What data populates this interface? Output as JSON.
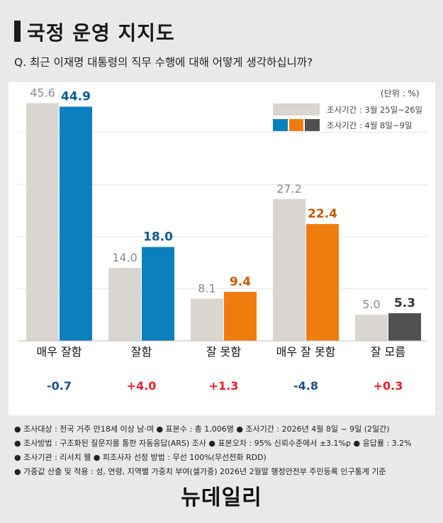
{
  "title": "국정 운영 지지도",
  "question": "Q. 최근 이재명 대통령의 직무 수행에 대해 어떻게 생각하십니까?",
  "unit": "(단위 : %)",
  "legend": {
    "prev": "조사기간 : 3월 25일~26일",
    "curr": "조사기간 : 4월 8일~9일"
  },
  "colors": {
    "prev": "#d9d6d2",
    "blue": "#0a80bf",
    "orange": "#ef7d0d",
    "gray": "#505050",
    "diff_up": "#e4202b",
    "diff_down": "#1f4e8c"
  },
  "chart_data": {
    "type": "bar",
    "categories": [
      "매우 잘함",
      "잘함",
      "잘 못함",
      "매우 잘 못함",
      "잘 모름"
    ],
    "series": [
      {
        "name": "조사기간 : 3월 25일~26일",
        "values": [
          45.6,
          14.0,
          8.1,
          27.2,
          5.0
        ]
      },
      {
        "name": "조사기간 : 4월 8일~9일",
        "values": [
          44.9,
          18.0,
          9.4,
          22.4,
          5.3
        ]
      }
    ],
    "value_labels_prev": [
      "45.6",
      "14.0",
      "8.1",
      "27.2",
      "5.0"
    ],
    "value_labels_curr": [
      "44.9",
      "18.0",
      "9.4",
      "22.4",
      "5.3"
    ],
    "curr_colors": [
      "#0a80bf",
      "#0a80bf",
      "#ef7d0d",
      "#ef7d0d",
      "#505050"
    ],
    "diffs": [
      "-0.7",
      "+4.0",
      "+1.3",
      "-4.8",
      "+0.3"
    ],
    "ylim": [
      0,
      50
    ],
    "grid": true
  },
  "notes": [
    "● 조사대상 : 전국 거주 만18세 이상 남·여  ● 표본수 : 총 1,006명  ● 조사기간 : 2026년 4월 8일 ~ 9일 (2일간)",
    "● 조사방법 : 구조화된 질문지를 통한 자동응답(ARS) 조사  ● 표본오차 : 95% 신뢰수준에서 ±3.1%p  ● 응답률 : 3.2%",
    "● 조사기관 : 리서치 웰  ● 피조사자 선정 방법 : 무선 100%(무선전화 RDD)",
    "● 가중값 산출 및 적용 : 성, 연령, 지역별 가중치 부여(셀가중) 2026년 2월말 행정안전부 주민등록 인구통계 기준"
  ],
  "logo": "뉴데일리"
}
